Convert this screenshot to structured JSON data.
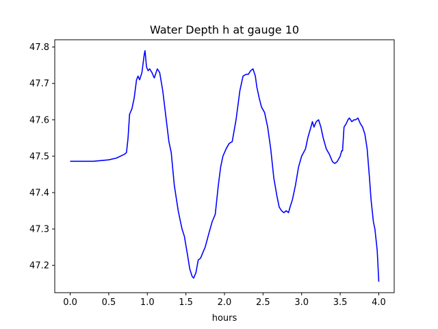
{
  "chart_data": {
    "type": "line",
    "title": "Water Depth h at gauge 10",
    "xlabel": "hours",
    "ylabel": "",
    "xlim": [
      -0.2,
      4.2
    ],
    "ylim": [
      47.125,
      47.82
    ],
    "xticks": [
      0.0,
      0.5,
      1.0,
      1.5,
      2.0,
      2.5,
      3.0,
      3.5,
      4.0
    ],
    "xtick_labels": [
      "0.0",
      "0.5",
      "1.0",
      "1.5",
      "2.0",
      "2.5",
      "3.0",
      "3.5",
      "4.0"
    ],
    "yticks": [
      47.2,
      47.3,
      47.4,
      47.5,
      47.6,
      47.7,
      47.8
    ],
    "ytick_labels": [
      "47.2",
      "47.3",
      "47.4",
      "47.5",
      "47.6",
      "47.7",
      "47.8"
    ],
    "grid": false,
    "series": [
      {
        "color": "#0000ff",
        "x": [
          0.0,
          0.3,
          0.5,
          0.6,
          0.7,
          0.73,
          0.75,
          0.77,
          0.8,
          0.83,
          0.86,
          0.88,
          0.9,
          0.93,
          0.96,
          0.97,
          0.99,
          1.01,
          1.03,
          1.06,
          1.09,
          1.13,
          1.16,
          1.2,
          1.24,
          1.28,
          1.31,
          1.35,
          1.4,
          1.43,
          1.45,
          1.48,
          1.52,
          1.55,
          1.58,
          1.6,
          1.63,
          1.66,
          1.69,
          1.72,
          1.75,
          1.8,
          1.84,
          1.88,
          1.92,
          1.95,
          1.98,
          2.02,
          2.06,
          2.1,
          2.15,
          2.2,
          2.24,
          2.28,
          2.31,
          2.34,
          2.37,
          2.4,
          2.42,
          2.45,
          2.48,
          2.52,
          2.56,
          2.6,
          2.64,
          2.68,
          2.71,
          2.74,
          2.77,
          2.8,
          2.83,
          2.85,
          2.88,
          2.92,
          2.96,
          3.0,
          3.05,
          3.08,
          3.12,
          3.14,
          3.16,
          3.19,
          3.22,
          3.25,
          3.28,
          3.32,
          3.36,
          3.4,
          3.43,
          3.46,
          3.5,
          3.52,
          3.53,
          3.55,
          3.58,
          3.6,
          3.62,
          3.65,
          3.68,
          3.7,
          3.73,
          3.76,
          3.79,
          3.82,
          3.85,
          3.88,
          3.9,
          3.93,
          3.95,
          3.97,
          3.98,
          4.0
        ],
        "y": [
          47.486,
          47.486,
          47.49,
          47.495,
          47.505,
          47.51,
          47.55,
          47.615,
          47.63,
          47.66,
          47.71,
          47.72,
          47.71,
          47.73,
          47.78,
          47.79,
          47.745,
          47.735,
          47.74,
          47.73,
          47.715,
          47.74,
          47.73,
          47.68,
          47.61,
          47.54,
          47.51,
          47.42,
          47.35,
          47.32,
          47.3,
          47.28,
          47.23,
          47.19,
          47.17,
          47.165,
          47.18,
          47.215,
          47.22,
          47.235,
          47.25,
          47.29,
          47.32,
          47.34,
          47.42,
          47.47,
          47.5,
          47.52,
          47.535,
          47.54,
          47.6,
          47.68,
          47.72,
          47.725,
          47.725,
          47.735,
          47.74,
          47.72,
          47.69,
          47.66,
          47.635,
          47.62,
          47.58,
          47.52,
          47.44,
          47.39,
          47.36,
          47.35,
          47.345,
          47.35,
          47.345,
          47.36,
          47.38,
          47.42,
          47.47,
          47.5,
          47.52,
          47.55,
          47.58,
          47.595,
          47.58,
          47.595,
          47.6,
          47.58,
          47.55,
          47.52,
          47.505,
          47.485,
          47.48,
          47.485,
          47.5,
          47.515,
          47.515,
          47.58,
          47.59,
          47.6,
          47.605,
          47.595,
          47.6,
          47.6,
          47.605,
          47.59,
          47.58,
          47.56,
          47.52,
          47.44,
          47.38,
          47.32,
          47.3,
          47.26,
          47.24,
          47.155
        ]
      }
    ]
  }
}
